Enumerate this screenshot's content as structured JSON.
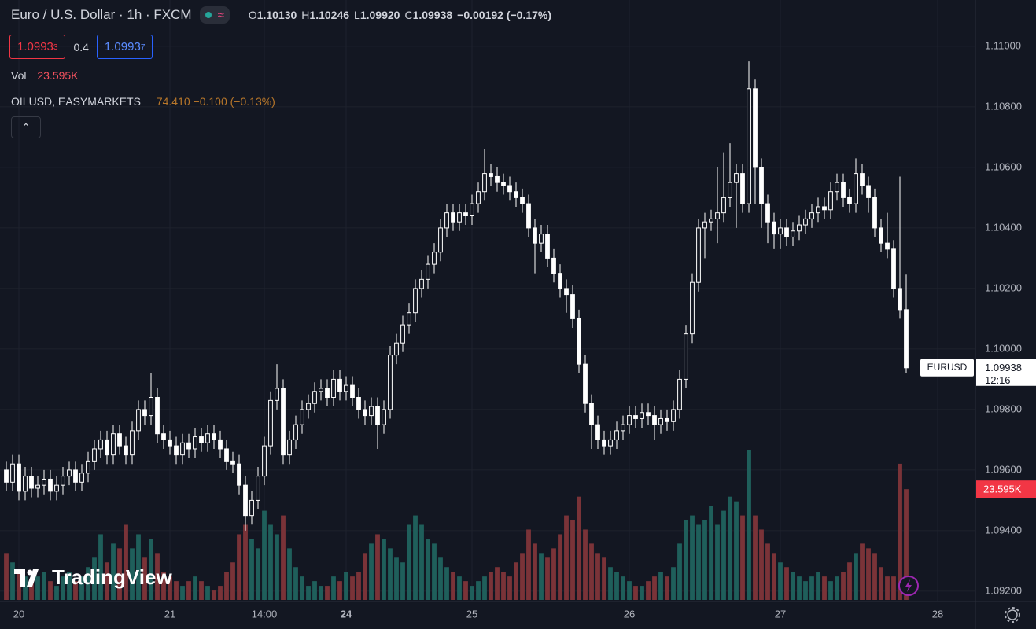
{
  "header": {
    "title": "Euro / U.S. Dollar · 1h · FXCM",
    "ohlc": [
      {
        "key": "O",
        "value": "1.10130"
      },
      {
        "key": "H",
        "value": "1.10246"
      },
      {
        "key": "L",
        "value": "1.09920"
      },
      {
        "key": "C",
        "value": "1.09938"
      }
    ],
    "change": "−0.00192 (−0.17%)",
    "bid_main": "1.0993",
    "bid_sup": "3",
    "spread": "0.4",
    "ask_main": "1.0993",
    "ask_sup": "7",
    "vol_label": "Vol",
    "vol_value": "23.595K",
    "compare_symbol": "OILUSD, EASYMARKETS",
    "compare_values": "74.410 −0.100 (−0.13%)",
    "logo": "TradingView"
  },
  "chart_data": {
    "type": "candlestick",
    "symbol_tag": "EURUSD",
    "last_price_label": "1.09938",
    "countdown": "12:16",
    "volume_tag": "23.595K",
    "xlim": [
      -1,
      154
    ],
    "xticks": [
      {
        "value": 2,
        "label": "20"
      },
      {
        "value": 26,
        "label": "21"
      },
      {
        "value": 41,
        "label": "14:00"
      },
      {
        "value": 54,
        "label": "24"
      },
      {
        "value": 74,
        "label": "25"
      },
      {
        "value": 99,
        "label": "26"
      },
      {
        "value": 123,
        "label": "27"
      },
      {
        "value": 148,
        "label": "28"
      }
    ],
    "ylim": [
      1.09166,
      1.11153
    ],
    "yticks": [
      {
        "value": 1.092,
        "label": "1.09200"
      },
      {
        "value": 1.094,
        "label": "1.09400"
      },
      {
        "value": 1.096,
        "label": "1.09600"
      },
      {
        "value": 1.098,
        "label": "1.09800"
      },
      {
        "value": 1.1,
        "label": "1.10000"
      },
      {
        "value": 1.102,
        "label": "1.10200"
      },
      {
        "value": 1.104,
        "label": "1.10400"
      },
      {
        "value": 1.106,
        "label": "1.10600"
      },
      {
        "value": 1.108,
        "label": "1.10800"
      },
      {
        "value": 1.11,
        "label": "1.11000"
      }
    ],
    "grid": true,
    "up_color": "#ffffff",
    "down_color": "#ffffff",
    "volume_up_color": "#1f5f5b",
    "volume_down_color": "#7a3338",
    "open": [
      1.096,
      1.0956,
      1.0962,
      1.0953,
      1.0958,
      1.0954,
      1.0955,
      1.0957,
      1.0953,
      1.0955,
      1.0958,
      1.096,
      1.0956,
      1.0959,
      1.0963,
      1.0967,
      1.097,
      1.0965,
      1.0972,
      1.0968,
      1.0965,
      1.0973,
      1.098,
      1.0978,
      1.0984,
      1.0972,
      1.097,
      1.0968,
      1.0965,
      1.0969,
      1.0967,
      1.0971,
      1.0969,
      1.0972,
      1.097,
      1.0967,
      1.0963,
      1.0962,
      1.0955,
      1.0945,
      1.095,
      1.0958,
      1.0968,
      1.0983,
      1.0987,
      1.0965,
      1.097,
      1.0975,
      1.098,
      1.0982,
      1.0986,
      1.0987,
      1.0984,
      1.099,
      1.0986,
      1.0988,
      1.0984,
      1.098,
      1.0978,
      1.0981,
      1.0975,
      1.098,
      1.0998,
      1.1002,
      1.1008,
      1.1012,
      1.102,
      1.1023,
      1.1028,
      1.1032,
      1.104,
      1.1045,
      1.1042,
      1.1045,
      1.1044,
      1.1048,
      1.1052,
      1.1058,
      1.1057,
      1.1055,
      1.1054,
      1.1052,
      1.105,
      1.1048,
      1.104,
      1.1035,
      1.1038,
      1.103,
      1.1025,
      1.102,
      1.1018,
      1.101,
      1.0995,
      1.0982,
      1.0975,
      1.097,
      1.0968,
      1.097,
      1.0973,
      1.0975,
      1.0978,
      1.0977,
      1.0979,
      1.0978,
      1.0975,
      1.0977,
      1.0976,
      1.098,
      1.099,
      1.1005,
      1.1022,
      1.104,
      1.1042,
      1.1043,
      1.1045,
      1.105,
      1.1055,
      1.1058,
      1.1048,
      1.1086,
      1.106,
      1.1048,
      1.1042,
      1.1038,
      1.104,
      1.1037,
      1.1039,
      1.1041,
      1.1043,
      1.1045,
      1.1047,
      1.1046,
      1.1052,
      1.1055,
      1.105,
      1.1048,
      1.1058,
      1.1054,
      1.105,
      1.104,
      1.1035,
      1.1033,
      1.102,
      1.1013
    ],
    "high": [
      1.0963,
      1.0965,
      1.0965,
      1.0961,
      1.0961,
      1.0958,
      1.096,
      1.096,
      1.0958,
      1.0961,
      1.0963,
      1.0963,
      1.0962,
      1.0966,
      1.097,
      1.0973,
      1.0973,
      1.0975,
      1.0975,
      1.0971,
      1.0976,
      1.0983,
      1.0983,
      1.0992,
      1.0987,
      1.0975,
      1.0973,
      1.0971,
      1.0972,
      1.0972,
      1.0974,
      1.0974,
      1.0975,
      1.0975,
      1.0973,
      1.097,
      1.0966,
      1.0965,
      1.0958,
      1.0953,
      1.0961,
      1.0971,
      1.0986,
      1.0995,
      1.099,
      1.0973,
      1.0978,
      1.0983,
      1.0985,
      1.0989,
      1.099,
      1.099,
      1.0993,
      1.0993,
      1.0991,
      1.0991,
      1.0987,
      1.0983,
      1.0984,
      1.0984,
      1.0983,
      1.1001,
      1.1005,
      1.1011,
      1.1015,
      1.1023,
      1.1026,
      1.1031,
      1.1035,
      1.1043,
      1.1048,
      1.1048,
      1.1048,
      1.1048,
      1.1051,
      1.1055,
      1.1066,
      1.1061,
      1.106,
      1.1058,
      1.1057,
      1.1055,
      1.1053,
      1.1051,
      1.1043,
      1.1041,
      1.1041,
      1.1033,
      1.1028,
      1.1023,
      1.1021,
      1.1013,
      1.0998,
      1.0985,
      1.0978,
      1.0973,
      1.0973,
      1.0976,
      1.0978,
      1.0981,
      1.0981,
      1.0982,
      1.0982,
      1.0981,
      1.098,
      1.098,
      1.0983,
      1.0993,
      1.1008,
      1.1025,
      1.1043,
      1.1045,
      1.1046,
      1.106,
      1.1065,
      1.1068,
      1.1061,
      1.1061,
      1.1095,
      1.1089,
      1.1063,
      1.1051,
      1.1045,
      1.1043,
      1.1043,
      1.1042,
      1.1044,
      1.1046,
      1.1048,
      1.105,
      1.105,
      1.1055,
      1.1058,
      1.1058,
      1.1053,
      1.1063,
      1.1061,
      1.1057,
      1.1053,
      1.1043,
      1.1045,
      1.1036,
      1.1057,
      1.10246
    ],
    "low": [
      1.0953,
      1.0953,
      1.095,
      1.095,
      1.0951,
      1.0951,
      1.0952,
      1.095,
      1.095,
      1.0952,
      1.0955,
      1.0953,
      1.0953,
      1.0956,
      1.096,
      1.0964,
      1.0962,
      1.0962,
      1.0965,
      1.0962,
      1.0962,
      1.097,
      1.0975,
      1.0975,
      1.0969,
      1.0967,
      1.0965,
      1.0962,
      1.0962,
      1.0964,
      1.0964,
      1.0966,
      1.0966,
      1.0967,
      1.0964,
      1.096,
      1.0959,
      1.0952,
      1.094,
      1.0942,
      1.0947,
      1.0955,
      1.0965,
      1.098,
      1.0962,
      1.0962,
      1.0967,
      1.0972,
      1.0977,
      1.0979,
      1.0983,
      1.0981,
      1.0981,
      1.0983,
      1.0983,
      1.0981,
      1.0977,
      1.0975,
      1.0975,
      1.0967,
      1.0972,
      1.0977,
      1.0995,
      1.0999,
      1.1005,
      1.1009,
      1.1017,
      1.102,
      1.1025,
      1.1029,
      1.1037,
      1.1039,
      1.1039,
      1.1041,
      1.1041,
      1.1045,
      1.1049,
      1.1054,
      1.1052,
      1.1051,
      1.1049,
      1.1047,
      1.1045,
      1.1037,
      1.1025,
      1.1032,
      1.1027,
      1.1022,
      1.1017,
      1.1012,
      1.1007,
      1.0992,
      1.0979,
      1.0967,
      1.0967,
      1.0965,
      1.0965,
      1.0967,
      1.097,
      1.0972,
      1.0974,
      1.0974,
      1.0975,
      1.097,
      1.0972,
      1.0973,
      1.0973,
      1.0977,
      1.0987,
      1.1002,
      1.1019,
      1.103,
      1.1039,
      1.1035,
      1.1042,
      1.1047,
      1.104,
      1.1045,
      1.1045,
      1.1048,
      1.104,
      1.1035,
      1.1033,
      1.1033,
      1.1034,
      1.1034,
      1.1036,
      1.1038,
      1.104,
      1.1042,
      1.1043,
      1.1043,
      1.1049,
      1.1047,
      1.1045,
      1.1045,
      1.1051,
      1.1045,
      1.1037,
      1.1032,
      1.103,
      1.1017,
      1.101,
      1.0992
    ],
    "close": [
      1.0956,
      1.0962,
      1.0953,
      1.0958,
      1.0954,
      1.0955,
      1.0957,
      1.0953,
      1.0955,
      1.0958,
      1.096,
      1.0956,
      1.0959,
      1.0963,
      1.0967,
      1.097,
      1.0965,
      1.0972,
      1.0968,
      1.0965,
      1.0973,
      1.098,
      1.0978,
      1.0984,
      1.0972,
      1.097,
      1.0968,
      1.0965,
      1.0969,
      1.0967,
      1.0971,
      1.0969,
      1.0972,
      1.097,
      1.0967,
      1.0963,
      1.0962,
      1.0955,
      1.0945,
      1.095,
      1.0958,
      1.0968,
      1.0983,
      1.0987,
      1.0965,
      1.097,
      1.0975,
      1.098,
      1.0982,
      1.0986,
      1.0987,
      1.0984,
      1.099,
      1.0986,
      1.0988,
      1.0984,
      1.098,
      1.0978,
      1.0981,
      1.0975,
      1.098,
      1.0998,
      1.1002,
      1.1008,
      1.1012,
      1.102,
      1.1023,
      1.1028,
      1.1032,
      1.104,
      1.1045,
      1.1042,
      1.1045,
      1.1044,
      1.1048,
      1.1052,
      1.1058,
      1.1057,
      1.1055,
      1.1054,
      1.1052,
      1.105,
      1.1048,
      1.104,
      1.1035,
      1.1038,
      1.103,
      1.1025,
      1.102,
      1.1018,
      1.101,
      1.0995,
      1.0982,
      1.0975,
      1.097,
      1.0968,
      1.097,
      1.0973,
      1.0975,
      1.0978,
      1.0977,
      1.0979,
      1.0978,
      1.0975,
      1.0977,
      1.0976,
      1.098,
      1.099,
      1.1005,
      1.1022,
      1.104,
      1.1042,
      1.1043,
      1.1045,
      1.105,
      1.1055,
      1.1058,
      1.1048,
      1.1086,
      1.106,
      1.1048,
      1.1042,
      1.1038,
      1.104,
      1.1037,
      1.1039,
      1.1041,
      1.1043,
      1.1045,
      1.1047,
      1.1046,
      1.1052,
      1.1055,
      1.105,
      1.1048,
      1.1058,
      1.1054,
      1.105,
      1.104,
      1.1035,
      1.1033,
      1.102,
      1.1013,
      1.09938
    ],
    "volume": [
      10000,
      8000,
      6000,
      5000,
      4000,
      5000,
      6000,
      4000,
      3000,
      5000,
      6000,
      4000,
      5000,
      7000,
      9000,
      14000,
      8000,
      12000,
      11000,
      16000,
      11000,
      14000,
      9000,
      13000,
      10000,
      6000,
      5000,
      4000,
      3000,
      4000,
      5000,
      4000,
      3000,
      2000,
      3000,
      6000,
      8000,
      14000,
      16000,
      13000,
      11000,
      19000,
      16000,
      14000,
      18000,
      11000,
      7000,
      5000,
      3000,
      4000,
      3000,
      3000,
      5000,
      4000,
      6000,
      5000,
      6000,
      10000,
      12000,
      14000,
      13000,
      11000,
      9000,
      8000,
      16000,
      18000,
      16000,
      13000,
      12000,
      9000,
      7000,
      6000,
      5000,
      4000,
      3000,
      4000,
      5000,
      6000,
      7000,
      6000,
      5000,
      8000,
      10000,
      15000,
      12000,
      10000,
      9000,
      11000,
      14000,
      18000,
      17000,
      22000,
      15000,
      12000,
      10000,
      9000,
      7000,
      6000,
      5000,
      4000,
      3000,
      3000,
      4000,
      5000,
      6000,
      5000,
      7000,
      12000,
      17000,
      18000,
      16000,
      17000,
      20000,
      16000,
      19000,
      22000,
      21000,
      18000,
      32000,
      18000,
      15000,
      12000,
      10000,
      8000,
      7000,
      6000,
      5000,
      4000,
      5000,
      6000,
      5000,
      4000,
      5000,
      6000,
      8000,
      10000,
      12000,
      11000,
      10000,
      7000,
      5000,
      5000,
      29000,
      23595
    ]
  }
}
